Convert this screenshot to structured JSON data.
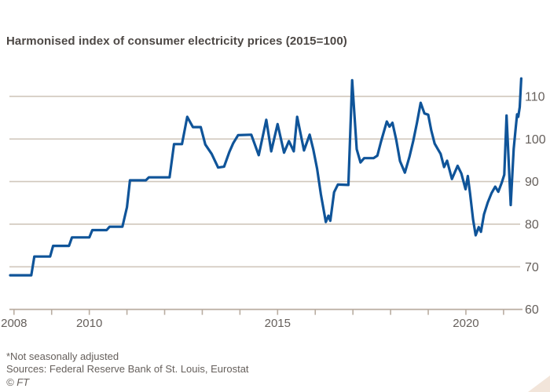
{
  "title": "Harmonised index of consumer electricity prices (2015=100)",
  "footer": {
    "footnote": "*Not seasonally adjusted",
    "sources": "Sources: Federal Reserve Bank of St. Louis, Eurostat",
    "copyright": "© FT"
  },
  "colors": {
    "line": "#0f5499",
    "gridline": "#d0c7bc",
    "axis": "#b9ada1",
    "tick_label": "#66605c",
    "title_text": "#4d4845",
    "footer_text": "#66605c",
    "corner_triangle": "#f2e5da",
    "background": "#ffffff"
  },
  "chart_data": {
    "type": "line",
    "title": "Harmonised index of consumer electricity prices (2015=100)",
    "xlabel": "",
    "ylabel": "",
    "x_axis": {
      "range": [
        2007.88,
        2021.52
      ],
      "tick_years": [
        2008,
        2009,
        2010,
        2011,
        2012,
        2013,
        2014,
        2015,
        2016,
        2017,
        2018,
        2019,
        2020,
        2021
      ],
      "labeled_years": [
        2008,
        2010,
        2015,
        2020
      ]
    },
    "y_axis": {
      "side": "right",
      "range": [
        60,
        117
      ],
      "tick_values": [
        60,
        70,
        80,
        90,
        100,
        110
      ],
      "grid": true
    },
    "series": [
      {
        "name": "index",
        "points": [
          [
            2007.9,
            68.0
          ],
          [
            2008.46,
            68.0
          ],
          [
            2008.54,
            72.4
          ],
          [
            2008.96,
            72.4
          ],
          [
            2009.04,
            74.9
          ],
          [
            2009.46,
            74.9
          ],
          [
            2009.54,
            76.9
          ],
          [
            2010.0,
            76.9
          ],
          [
            2010.08,
            78.6
          ],
          [
            2010.46,
            78.6
          ],
          [
            2010.54,
            79.4
          ],
          [
            2010.88,
            79.4
          ],
          [
            2011.0,
            84.0
          ],
          [
            2011.08,
            90.3
          ],
          [
            2011.5,
            90.3
          ],
          [
            2011.58,
            91.0
          ],
          [
            2012.13,
            91.0
          ],
          [
            2012.25,
            98.8
          ],
          [
            2012.46,
            98.8
          ],
          [
            2012.6,
            105.2
          ],
          [
            2012.75,
            102.8
          ],
          [
            2012.96,
            102.8
          ],
          [
            2013.08,
            98.7
          ],
          [
            2013.25,
            96.5
          ],
          [
            2013.42,
            93.3
          ],
          [
            2013.58,
            93.5
          ],
          [
            2013.72,
            97.0
          ],
          [
            2013.82,
            99.0
          ],
          [
            2013.95,
            100.9
          ],
          [
            2014.3,
            101.0
          ],
          [
            2014.5,
            96.2
          ],
          [
            2014.7,
            104.5
          ],
          [
            2014.83,
            97.1
          ],
          [
            2015.0,
            103.5
          ],
          [
            2015.17,
            96.8
          ],
          [
            2015.3,
            99.5
          ],
          [
            2015.43,
            97.1
          ],
          [
            2015.52,
            105.2
          ],
          [
            2015.7,
            97.3
          ],
          [
            2015.85,
            101.0
          ],
          [
            2015.95,
            97.5
          ],
          [
            2016.05,
            93.0
          ],
          [
            2016.15,
            87.0
          ],
          [
            2016.28,
            80.5
          ],
          [
            2016.35,
            82.0
          ],
          [
            2016.4,
            80.8
          ],
          [
            2016.5,
            87.5
          ],
          [
            2016.6,
            89.3
          ],
          [
            2016.88,
            89.2
          ],
          [
            2016.98,
            113.8
          ],
          [
            2017.1,
            97.6
          ],
          [
            2017.2,
            94.5
          ],
          [
            2017.3,
            95.5
          ],
          [
            2017.55,
            95.5
          ],
          [
            2017.65,
            96.1
          ],
          [
            2017.75,
            99.5
          ],
          [
            2017.9,
            104.1
          ],
          [
            2017.97,
            102.9
          ],
          [
            2018.05,
            103.8
          ],
          [
            2018.15,
            99.8
          ],
          [
            2018.25,
            94.8
          ],
          [
            2018.38,
            92.1
          ],
          [
            2018.5,
            95.8
          ],
          [
            2018.6,
            99.5
          ],
          [
            2018.7,
            103.8
          ],
          [
            2018.8,
            108.5
          ],
          [
            2018.9,
            106.0
          ],
          [
            2019.0,
            105.7
          ],
          [
            2019.08,
            102.0
          ],
          [
            2019.17,
            98.9
          ],
          [
            2019.25,
            97.7
          ],
          [
            2019.33,
            96.5
          ],
          [
            2019.42,
            93.4
          ],
          [
            2019.5,
            94.9
          ],
          [
            2019.63,
            90.6
          ],
          [
            2019.78,
            93.7
          ],
          [
            2019.88,
            91.9
          ],
          [
            2019.99,
            88.2
          ],
          [
            2020.05,
            91.3
          ],
          [
            2020.11,
            87.3
          ],
          [
            2020.19,
            81.1
          ],
          [
            2020.26,
            77.4
          ],
          [
            2020.34,
            79.3
          ],
          [
            2020.4,
            78.2
          ],
          [
            2020.48,
            82.3
          ],
          [
            2020.58,
            85.1
          ],
          [
            2020.68,
            87.3
          ],
          [
            2020.78,
            88.8
          ],
          [
            2020.86,
            87.6
          ],
          [
            2020.95,
            89.7
          ],
          [
            2021.02,
            91.6
          ],
          [
            2021.08,
            105.5
          ],
          [
            2021.19,
            84.5
          ],
          [
            2021.27,
            97.7
          ],
          [
            2021.32,
            102.3
          ],
          [
            2021.36,
            105.8
          ],
          [
            2021.39,
            105.2
          ],
          [
            2021.43,
            107.5
          ],
          [
            2021.47,
            114.2
          ]
        ]
      }
    ],
    "legend": null,
    "layout_hints": {
      "gridlines": "horizontal only",
      "x_tick_marks": "below axis"
    }
  }
}
